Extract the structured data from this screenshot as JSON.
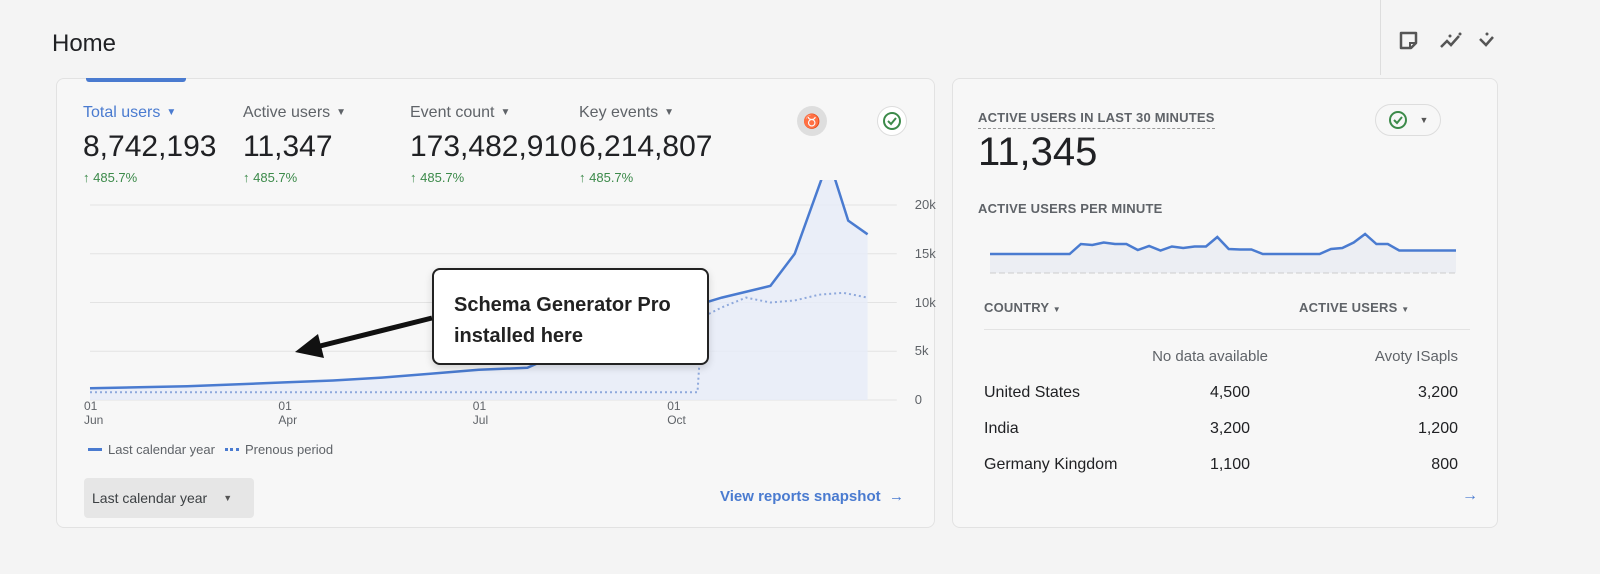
{
  "header": {
    "title": "Home",
    "icons": [
      "note-icon",
      "insights-icon",
      "more-icon"
    ]
  },
  "metrics": [
    {
      "label": "Total users",
      "value": "8,742,193",
      "change": "485.7%",
      "selected": true
    },
    {
      "label": "Active users",
      "value": "11,347",
      "change": "485.7%"
    },
    {
      "label": "Event count",
      "value": "173,482,910",
      "change": "485.7%"
    },
    {
      "label": "Key events",
      "value": "6,214,807",
      "change": "485.7%"
    }
  ],
  "chart_data": {
    "type": "line",
    "x_ticks": [
      {
        "x": 0,
        "day": "01",
        "month": "Jun"
      },
      {
        "x": 4,
        "day": "01",
        "month": "Apr"
      },
      {
        "x": 8,
        "day": "01",
        "month": "Jul"
      },
      {
        "x": 12,
        "day": "01",
        "month": "Oct"
      }
    ],
    "y_ticks": [
      "0",
      "5k",
      "10k",
      "15k",
      "20k"
    ],
    "ylim": [
      0,
      20000
    ],
    "grid": true,
    "legend_placement": "bottom-left",
    "series": [
      {
        "name": "Last calendar year",
        "style": "solid",
        "color": "#4a7bd0",
        "points": [
          [
            0,
            1200
          ],
          [
            1,
            1300
          ],
          [
            2,
            1400
          ],
          [
            3,
            1600
          ],
          [
            4,
            1800
          ],
          [
            5,
            2000
          ],
          [
            6,
            2300
          ],
          [
            7,
            2700
          ],
          [
            8,
            3100
          ],
          [
            9,
            3300
          ],
          [
            10,
            5500
          ],
          [
            11,
            7500
          ],
          [
            12,
            9000
          ],
          [
            13,
            10500
          ],
          [
            14,
            11700
          ],
          [
            14.5,
            15000
          ],
          [
            15.2,
            24700
          ],
          [
            15.6,
            18400
          ],
          [
            16,
            17000
          ]
        ]
      },
      {
        "name": "Prenous period",
        "style": "dotted",
        "color": "#8fa9dc",
        "points": [
          [
            0,
            800
          ],
          [
            4,
            800
          ],
          [
            8,
            800
          ],
          [
            12.5,
            800
          ],
          [
            12.6,
            8500
          ],
          [
            13,
            9500
          ],
          [
            13.5,
            10500
          ],
          [
            14,
            10000
          ],
          [
            14.5,
            10200
          ],
          [
            15,
            10800
          ],
          [
            15.5,
            11000
          ],
          [
            16,
            10500
          ]
        ]
      }
    ]
  },
  "annotation": {
    "line1": "Schema Generator Pro",
    "line2": "installed here"
  },
  "date_range": "Last calendar year",
  "snapshot_link": "View reports snapshot",
  "realtime": {
    "title": "ACTIVE USERS IN LAST 30 MINUTES",
    "value": "11,345",
    "subtitle": "ACTIVE USERS PER MINUTE",
    "sparkline": [
      3,
      3,
      3,
      3,
      3,
      3,
      3,
      3,
      5,
      4.8,
      5.3,
      5,
      5,
      3.8,
      4.6,
      3.7,
      4.5,
      4.2,
      4.5,
      4.5,
      6.4,
      4,
      3.9,
      3.9,
      3,
      3,
      3,
      3,
      3,
      3,
      4,
      4.2,
      5.3,
      7,
      5,
      5,
      3.7,
      3.7,
      3.7,
      3.7,
      3.7,
      3.7
    ],
    "col_country": "COUNTRY",
    "col_active": "ACTIVE USERS",
    "sub_col1": "No data available",
    "sub_col2": "Avoty ISapls",
    "rows": [
      {
        "country": "United States",
        "v1": "4,500",
        "v2": "3,200"
      },
      {
        "country": "India",
        "v1": "3,200",
        "v2": "1,200"
      },
      {
        "country": "Germany Kingdom",
        "v1": "1,100",
        "v2": "800"
      }
    ]
  }
}
